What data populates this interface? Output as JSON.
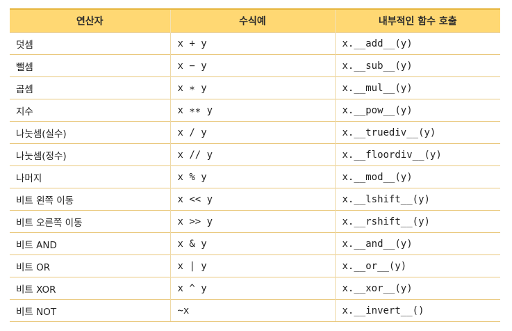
{
  "table": {
    "headers": [
      "연산자",
      "수식예",
      "내부적인 함수 호출"
    ],
    "rows": [
      {
        "op": "덧셈",
        "expr": "x + y",
        "call": "x.__add__(y)"
      },
      {
        "op": "뺄셈",
        "expr": "x − y",
        "call": "x.__sub__(y)"
      },
      {
        "op": "곱셈",
        "expr": "x ∗ y",
        "call": "x.__mul__(y)"
      },
      {
        "op": "지수",
        "expr": "x ∗∗ y",
        "call": "x.__pow__(y)"
      },
      {
        "op": "나눗셈(실수)",
        "expr": "x / y",
        "call": "x.__truediv__(y)"
      },
      {
        "op": "나눗셈(정수)",
        "expr": "x // y",
        "call": "x.__floordiv__(y)"
      },
      {
        "op": "나머지",
        "expr": "x % y",
        "call": "x.__mod__(y)"
      },
      {
        "op": "비트 왼쪽 이동",
        "expr": "x << y",
        "call": "x.__lshift__(y)"
      },
      {
        "op": "비트 오른쪽 이동",
        "expr": "x >> y",
        "call": "x.__rshift__(y)"
      },
      {
        "op": "비트 AND",
        "expr": "x & y",
        "call": "x.__and__(y)"
      },
      {
        "op": "비트 OR",
        "expr": "x | y",
        "call": "x.__or__(y)"
      },
      {
        "op": "비트 XOR",
        "expr": "x ^ y",
        "call": "x.__xor__(y)"
      },
      {
        "op": "비트 NOT",
        "expr": "~x",
        "call": "x.__invert__()"
      }
    ]
  },
  "colors": {
    "header_bg": "#ffd873",
    "rule": "#e9c77a",
    "text": "#222222"
  }
}
